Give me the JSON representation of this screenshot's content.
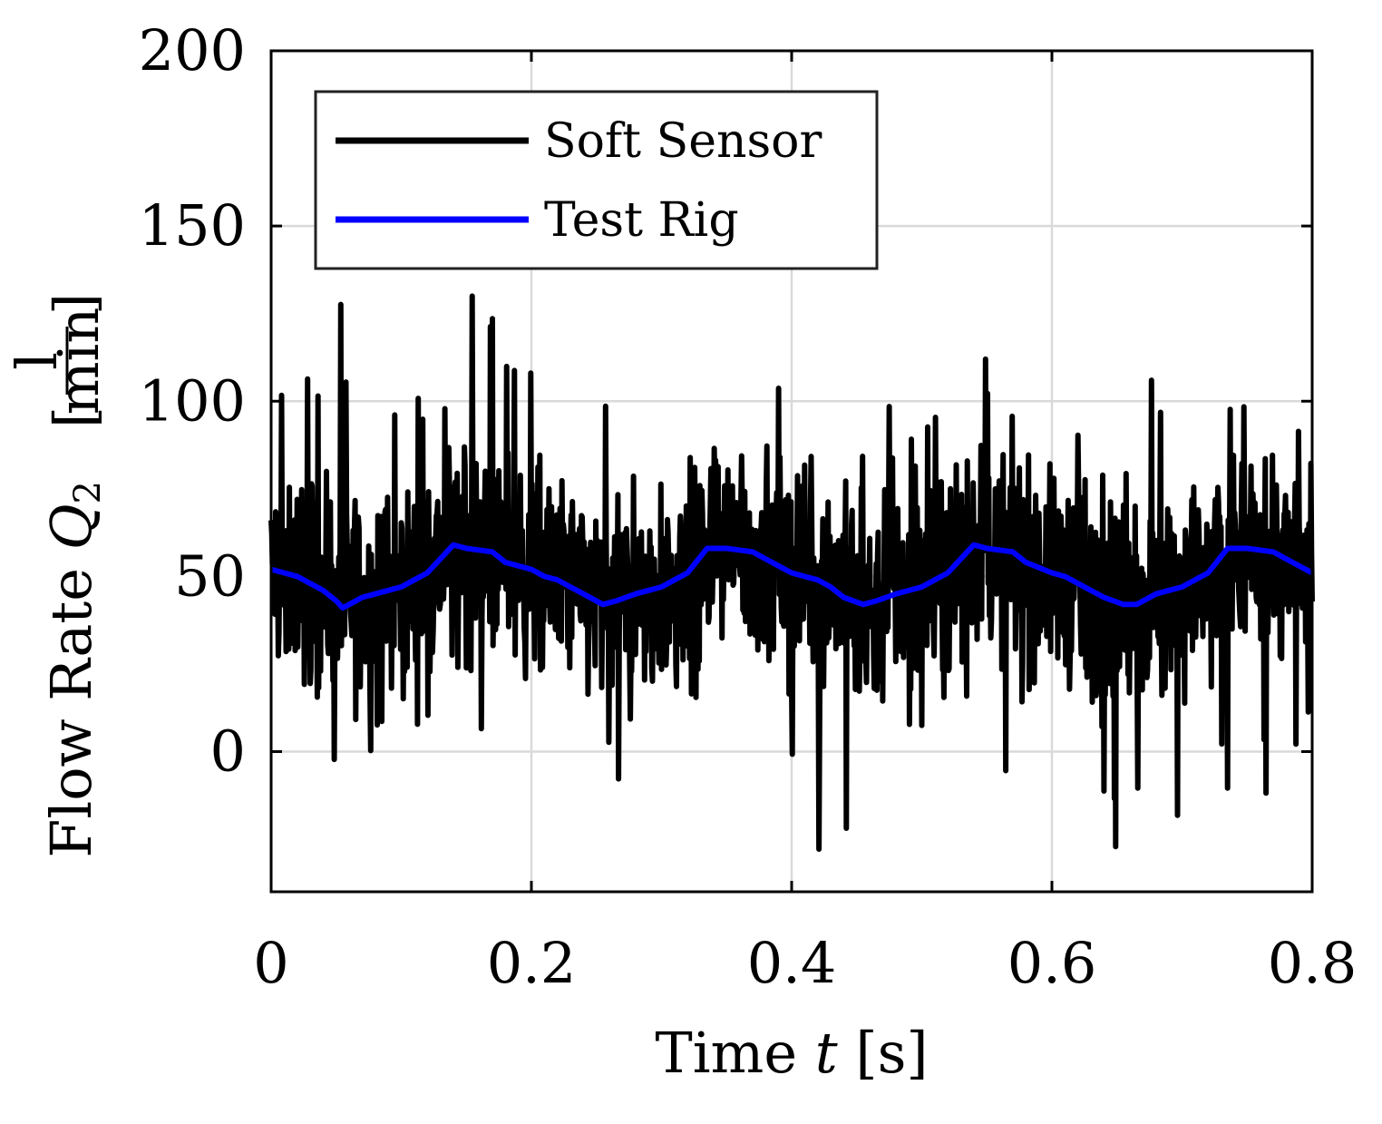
{
  "chart_data": {
    "type": "line",
    "title": "",
    "xlabel": "Time",
    "xlabel_var": "t",
    "xlabel_unit": "[s]",
    "ylabel": "Flow Rate",
    "ylabel_var": "Q",
    "ylabel_sub": "2",
    "ylabel_unit_num": "l",
    "ylabel_unit_den": "min",
    "xlim": [
      0,
      0.8
    ],
    "ylim": [
      -40,
      200
    ],
    "xticks": [
      0,
      0.2,
      0.4,
      0.6,
      0.8
    ],
    "xtick_labels": [
      "0",
      "0.2",
      "0.4",
      "0.6",
      "0.8"
    ],
    "yticks": [
      0,
      50,
      100,
      150,
      200
    ],
    "ytick_labels": [
      "0",
      "50",
      "100",
      "150",
      "200"
    ],
    "grid": true,
    "legend_position": "top-left",
    "series": [
      {
        "name": "Soft Sensor",
        "color": "#000000",
        "noisy": true,
        "x": [
          0,
          0.02,
          0.04,
          0.06,
          0.08,
          0.1,
          0.12,
          0.14,
          0.16,
          0.18,
          0.2,
          0.22,
          0.24,
          0.26,
          0.28,
          0.3,
          0.32,
          0.34,
          0.36,
          0.38,
          0.4,
          0.42,
          0.44,
          0.46,
          0.48,
          0.5,
          0.52,
          0.54,
          0.56,
          0.58,
          0.6,
          0.62,
          0.64,
          0.66,
          0.68,
          0.7,
          0.72,
          0.74,
          0.76,
          0.78,
          0.8
        ],
        "values": [
          52,
          51,
          47,
          44,
          44,
          46,
          50,
          59,
          58,
          54,
          52,
          50,
          45,
          41,
          45,
          47,
          51,
          59,
          57,
          56,
          52,
          50,
          46,
          41,
          44,
          46,
          51,
          59,
          57,
          54,
          50,
          48,
          45,
          40,
          45,
          46,
          50,
          58,
          57,
          53,
          50
        ],
        "min_value": -33,
        "max_value": 130
      },
      {
        "name": "Test Rig",
        "color": "#0000ff",
        "noisy": false,
        "x": [
          0,
          0.01,
          0.02,
          0.03,
          0.04,
          0.05,
          0.055,
          0.06,
          0.07,
          0.08,
          0.09,
          0.1,
          0.11,
          0.12,
          0.13,
          0.14,
          0.15,
          0.17,
          0.18,
          0.2,
          0.21,
          0.22,
          0.23,
          0.24,
          0.255,
          0.265,
          0.28,
          0.29,
          0.3,
          0.31,
          0.32,
          0.335,
          0.35,
          0.37,
          0.38,
          0.39,
          0.4,
          0.41,
          0.42,
          0.43,
          0.44,
          0.455,
          0.465,
          0.48,
          0.5,
          0.51,
          0.52,
          0.53,
          0.54,
          0.55,
          0.57,
          0.58,
          0.6,
          0.61,
          0.62,
          0.63,
          0.64,
          0.655,
          0.665,
          0.68,
          0.69,
          0.7,
          0.71,
          0.72,
          0.735,
          0.75,
          0.77,
          0.78,
          0.8
        ],
        "values": [
          52,
          51,
          50,
          48,
          46,
          43,
          41,
          42,
          44,
          45,
          46,
          47,
          49,
          51,
          55,
          59,
          58,
          57,
          54,
          52,
          50,
          49,
          47,
          45,
          42,
          43,
          45,
          46,
          47,
          49,
          51,
          58,
          58,
          57,
          55,
          53,
          51,
          50,
          49,
          47,
          44,
          42,
          43,
          45,
          47,
          49,
          51,
          55,
          59,
          58,
          57,
          54,
          51,
          50,
          48,
          46,
          44,
          42,
          42,
          45,
          46,
          47,
          49,
          51,
          58,
          58,
          57,
          55,
          51
        ]
      }
    ]
  }
}
